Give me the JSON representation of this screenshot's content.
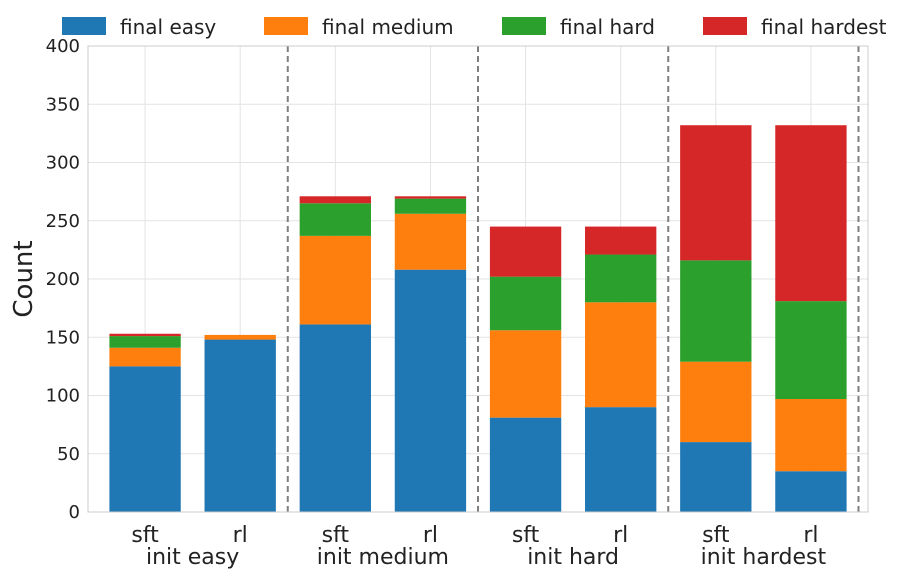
{
  "chart_data": {
    "type": "bar",
    "stacked": true,
    "ylabel": "Count",
    "xlabel": "",
    "ylim": [
      0,
      400
    ],
    "yticks": [
      0,
      50,
      100,
      150,
      200,
      250,
      300,
      350,
      400
    ],
    "grid": true,
    "legend_position": "top",
    "categories": [
      "sft",
      "rl",
      "sft",
      "rl",
      "sft",
      "rl",
      "sft",
      "rl"
    ],
    "groups": [
      "init easy",
      "init medium",
      "init hard",
      "init hardest"
    ],
    "series": [
      {
        "name": "final easy",
        "color": "#1f77b4",
        "values": [
          125,
          148,
          161,
          208,
          81,
          90,
          60,
          35
        ]
      },
      {
        "name": "final medium",
        "color": "#ff7f0e",
        "values": [
          16,
          4,
          76,
          48,
          75,
          90,
          69,
          62
        ]
      },
      {
        "name": "final hard",
        "color": "#2ca02c",
        "values": [
          10,
          0,
          28,
          13,
          46,
          41,
          87,
          84
        ]
      },
      {
        "name": "final hardest",
        "color": "#d62728",
        "values": [
          2,
          0,
          6,
          2,
          43,
          24,
          116,
          151
        ]
      }
    ]
  }
}
